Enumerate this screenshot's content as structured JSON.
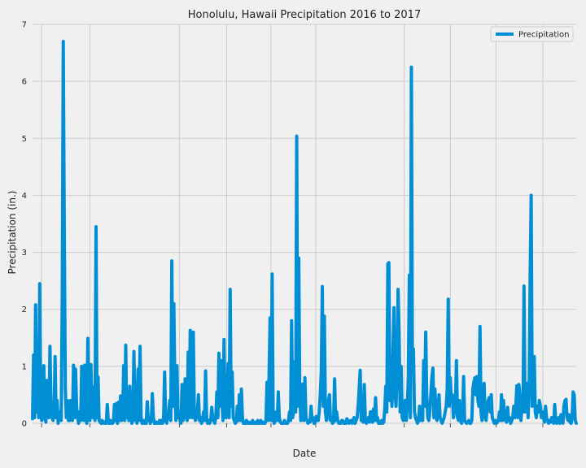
{
  "chart_data": {
    "type": "line",
    "title": "Honolulu, Hawaii Precipitation 2016 to 2017",
    "xlabel": "Date",
    "ylabel": "Precipitation (in.)",
    "ylim": [
      0,
      7
    ],
    "yticks": [
      "0",
      "1",
      "2",
      "3",
      "4",
      "5",
      "6",
      "7"
    ],
    "grid": true,
    "legend": {
      "position": "top-right",
      "entries": [
        "Precipitation"
      ]
    },
    "series": [
      {
        "name": "Precipitation",
        "color": "#008fd5",
        "values": [
          0.08,
          1.2,
          0.1,
          2.08,
          0.2,
          0.9,
          0.1,
          2.45,
          0.3,
          0.05,
          0.2,
          1.01,
          0.1,
          0.02,
          0.75,
          0.2,
          0.1,
          1.35,
          0.3,
          0.1,
          0.05,
          0.2,
          1.17,
          0.1,
          0.4,
          0.0,
          0.2,
          0.1,
          0.05,
          2.2,
          6.7,
          3.33,
          0.6,
          0.1,
          0.4,
          0.05,
          0.05,
          0.4,
          0.1,
          0.05,
          1.02,
          0.1,
          0.95,
          0.3,
          0.1,
          0.0,
          0.2,
          0.05,
          1.0,
          0.3,
          0.05,
          1.02,
          0.1,
          0.0,
          1.49,
          0.3,
          0.05,
          1.03,
          0.2,
          0.1,
          0.64,
          0.05,
          3.45,
          0.1,
          0.81,
          0.05,
          0.02,
          0.0,
          0.05,
          0.0,
          0.02,
          0.0,
          0.0,
          0.33,
          0.02,
          0.0,
          0.05,
          0.0,
          0.0,
          0.02,
          0.33,
          0.05,
          0.35,
          0.0,
          0.37,
          0.05,
          0.48,
          0.05,
          0.1,
          1.01,
          0.05,
          1.37,
          0.1,
          0.2,
          0.05,
          0.65,
          0.1,
          0.0,
          0.05,
          1.26,
          0.1,
          0.05,
          0.0,
          0.95,
          0.05,
          1.35,
          0.1,
          0.0,
          0.0,
          0.05,
          0.0,
          0.0,
          0.38,
          0.05,
          0.1,
          0.0,
          0.05,
          0.52,
          0.1,
          0.0,
          0.0,
          0.02,
          0.0,
          0.0,
          0.05,
          0.0,
          0.05,
          0.0,
          0.1,
          0.9,
          0.05,
          0.0,
          0.1,
          0.2,
          0.4,
          0.05,
          2.85,
          0.3,
          2.1,
          0.6,
          0.05,
          1.01,
          0.1,
          0.2,
          0.05,
          0.0,
          0.68,
          0.05,
          0.1,
          0.78,
          0.2,
          0.05,
          1.25,
          0.1,
          1.63,
          0.3,
          0.1,
          1.6,
          0.2,
          0.05,
          0.1,
          0.2,
          0.5,
          0.05,
          0.1,
          0.0,
          0.05,
          0.2,
          0.05,
          0.92,
          0.1,
          0.0,
          0.05,
          0.0,
          0.05,
          0.28,
          0.1,
          0.05,
          0.0,
          0.1,
          0.55,
          0.1,
          1.23,
          0.3,
          1.1,
          0.4,
          0.05,
          1.47,
          0.2,
          0.1,
          0.4,
          1.05,
          0.1,
          2.35,
          0.3,
          0.9,
          0.1,
          0.05,
          0.0,
          0.02,
          0.3,
          0.05,
          0.5,
          0.05,
          0.6,
          0.1,
          0.0,
          0.02,
          0.0,
          0.05,
          0.0,
          0.0,
          0.02,
          0.0,
          0.0,
          0.05,
          0.0,
          0.0,
          0.02,
          0.0,
          0.05,
          0.0,
          0.0,
          0.05,
          0.0,
          0.02,
          0.0,
          0.0,
          0.05,
          0.72,
          0.05,
          0.84,
          1.85,
          0.05,
          2.62,
          0.1,
          0.0,
          0.05,
          0.2,
          0.05,
          0.55,
          0.1,
          0.02,
          0.0,
          0.0,
          0.0,
          0.05,
          0.0,
          0.02,
          0.0,
          0.05,
          0.2,
          0.05,
          1.8,
          0.1,
          0.2,
          1.08,
          0.2,
          5.04,
          0.3,
          2.9,
          0.5,
          0.05,
          0.2,
          0.69,
          0.05,
          0.8,
          0.1,
          0.05,
          0.0,
          0.05,
          0.02,
          0.3,
          0.05,
          0.1,
          0.0,
          0.02,
          0.12,
          0.05,
          0.05,
          0.2,
          0.5,
          0.9,
          2.4,
          0.3,
          1.88,
          0.2,
          0.05,
          0.1,
          0.4,
          0.5,
          0.05,
          0.1,
          0.0,
          0.02,
          0.78,
          0.05,
          0.2,
          0.05,
          0.0,
          0.02,
          0.0,
          0.05,
          0.05,
          0.0,
          0.0,
          0.0,
          0.08,
          0.05,
          0.0,
          0.02,
          0.05,
          0.0,
          0.05,
          0.1,
          0.0,
          0.05,
          0.1,
          0.3,
          0.6,
          0.93,
          0.05,
          0.1,
          0.02,
          0.68,
          0.05,
          0.0,
          0.05,
          0.1,
          0.02,
          0.2,
          0.2,
          0.02,
          0.25,
          0.05,
          0.45,
          0.05,
          0.1,
          0.0,
          0.02,
          0.0,
          0.05,
          0.0,
          0.02,
          0.25,
          0.65,
          0.2,
          2.8,
          2.82,
          0.4,
          0.9,
          0.3,
          1.28,
          2.03,
          0.5,
          0.3,
          0.9,
          2.35,
          1.58,
          0.2,
          1.0,
          0.1,
          0.05,
          0.2,
          0.4,
          0.05,
          0.3,
          0.8,
          2.6,
          0.1,
          6.25,
          0.9,
          1.3,
          0.2,
          0.1,
          0.05,
          0.0,
          0.05,
          0.3,
          0.05,
          0.2,
          0.05,
          1.1,
          0.3,
          1.6,
          0.5,
          0.1,
          0.05,
          0.2,
          0.5,
          0.8,
          0.97,
          0.1,
          0.6,
          0.1,
          0.05,
          0.3,
          0.5,
          0.1,
          0.05,
          0.0,
          0.05,
          0.1,
          0.2,
          0.3,
          0.6,
          2.18,
          0.3,
          0.8,
          0.4,
          0.5,
          0.1,
          0.2,
          0.3,
          1.1,
          0.1,
          0.05,
          0.4,
          0.05,
          0.0,
          0.1,
          0.82,
          0.05,
          0.02,
          0.0,
          0.02,
          0.05,
          0.0,
          0.0,
          0.05,
          0.6,
          0.72,
          0.8,
          0.5,
          0.82,
          0.4,
          0.3,
          1.7,
          0.2,
          0.05,
          0.3,
          0.7,
          0.1,
          0.05,
          0.3,
          0.4,
          0.45,
          0.2,
          0.5,
          0.1,
          0.05,
          0.0,
          0.05,
          0.0,
          0.02,
          0.05,
          0.2,
          0.05,
          0.5,
          0.05,
          0.4,
          0.1,
          0.05,
          0.02,
          0.28,
          0.05,
          0.1,
          0.0,
          0.05,
          0.1,
          0.3,
          0.1,
          0.3,
          0.66,
          0.1,
          0.68,
          0.5,
          0.05,
          0.3,
          0.2,
          2.41,
          0.2,
          0.4,
          0.7,
          0.1,
          0.6,
          2.6,
          4.0,
          0.3,
          0.5,
          1.17,
          0.2,
          0.1,
          0.3,
          0.2,
          0.4,
          0.3,
          0.1,
          0.2,
          0.1,
          0.02,
          0.3,
          0.1,
          0.05,
          0.0,
          0.05,
          0.02,
          0.1,
          0.05,
          0.0,
          0.33,
          0.05,
          0.0,
          0.02,
          0.1,
          0.0,
          0.15,
          0.05,
          0.0,
          0.3,
          0.4,
          0.42,
          0.1,
          0.05,
          0.15,
          0.02,
          0.0,
          0.1,
          0.55,
          0.5,
          0.05,
          0.0
        ]
      }
    ]
  }
}
